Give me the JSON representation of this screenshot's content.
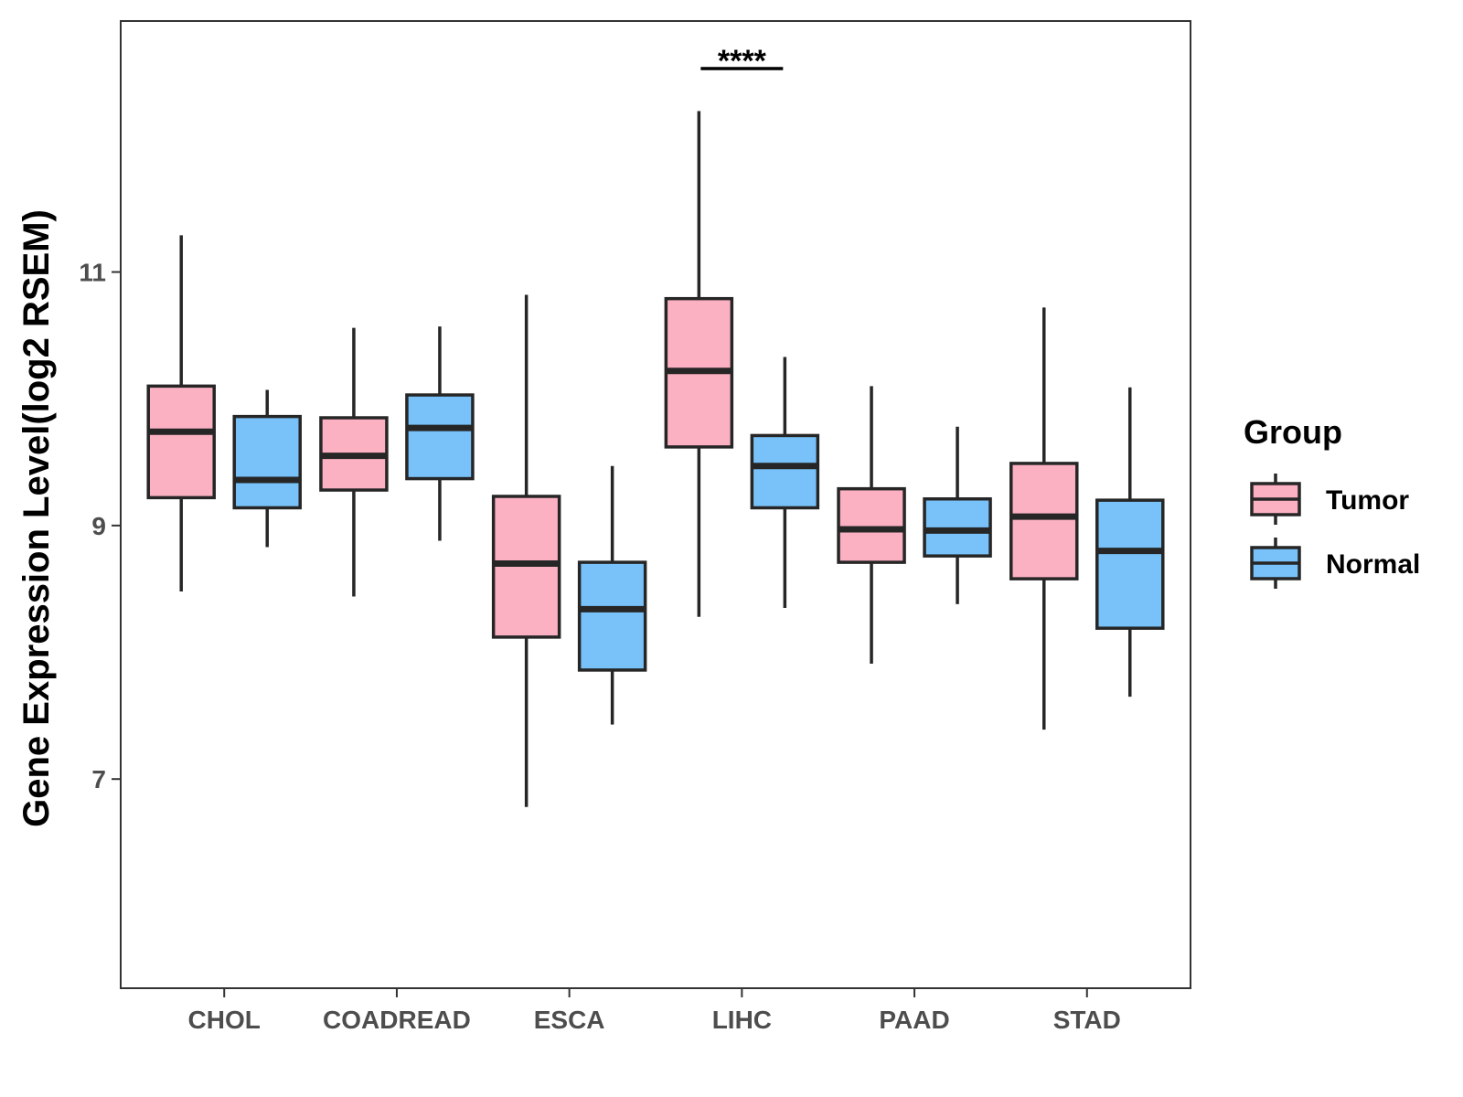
{
  "chart_data": {
    "type": "boxplot",
    "ylabel": "Gene Expression Level(log2 RSEM)",
    "xlabel": "",
    "ylim": [
      5.35,
      12.98
    ],
    "yticks": [
      7,
      9,
      11
    ],
    "categories": [
      "CHOL",
      "COADREAD",
      "ESCA",
      "LIHC",
      "PAAD",
      "STAD"
    ],
    "groups": [
      "Tumor",
      "Normal"
    ],
    "series": [
      {
        "name": "Tumor",
        "color": "#FCB1C3",
        "boxes": [
          {
            "min": 8.48,
            "q1": 9.22,
            "median": 9.74,
            "q3": 10.1,
            "max": 11.29
          },
          {
            "min": 8.44,
            "q1": 9.28,
            "median": 9.55,
            "q3": 9.85,
            "max": 10.56
          },
          {
            "min": 6.78,
            "q1": 8.12,
            "median": 8.7,
            "q3": 9.23,
            "max": 10.82
          },
          {
            "min": 8.28,
            "q1": 9.62,
            "median": 10.22,
            "q3": 10.79,
            "max": 12.27
          },
          {
            "min": 7.91,
            "q1": 8.71,
            "median": 8.97,
            "q3": 9.29,
            "max": 10.1
          },
          {
            "min": 7.39,
            "q1": 8.58,
            "median": 9.07,
            "q3": 9.49,
            "max": 10.72
          }
        ]
      },
      {
        "name": "Normal",
        "color": "#78C2F9",
        "boxes": [
          {
            "min": 8.83,
            "q1": 9.14,
            "median": 9.36,
            "q3": 9.86,
            "max": 10.07
          },
          {
            "min": 8.88,
            "q1": 9.37,
            "median": 9.77,
            "q3": 10.03,
            "max": 10.57
          },
          {
            "min": 7.43,
            "q1": 7.86,
            "median": 8.34,
            "q3": 8.71,
            "max": 9.47
          },
          {
            "min": 8.35,
            "q1": 9.14,
            "median": 9.47,
            "q3": 9.71,
            "max": 10.33
          },
          {
            "min": 8.38,
            "q1": 8.76,
            "median": 8.96,
            "q3": 9.21,
            "max": 9.78
          },
          {
            "min": 7.65,
            "q1": 8.19,
            "median": 8.8,
            "q3": 9.2,
            "max": 10.09
          }
        ]
      }
    ],
    "annotations": [
      {
        "text": "****",
        "category": "LIHC"
      }
    ],
    "legend": {
      "title": "Group",
      "position": "right"
    }
  }
}
